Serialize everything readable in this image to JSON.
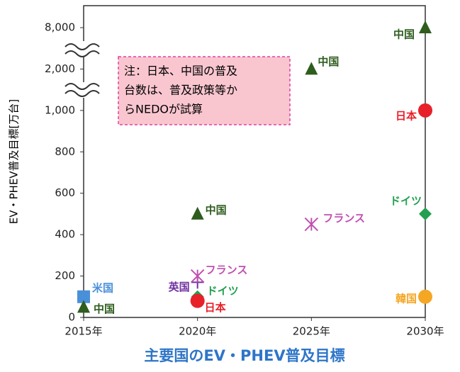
{
  "chart_data": {
    "type": "scatter",
    "title": "主要国のEV・PHEV普及目標",
    "y_label": "EV・PHEV普及目標[万台]",
    "annotation": [
      "注：日本、中国の普及",
      "台数は、普及政策等か",
      "らNEDOが試算"
    ],
    "xlim": [
      2015,
      2030
    ],
    "xticks": [
      {
        "value": 2015,
        "label": "2015年"
      },
      {
        "value": 2020,
        "label": "2020年"
      },
      {
        "value": 2025,
        "label": "2025年"
      },
      {
        "value": 2030,
        "label": "2030年"
      }
    ],
    "ylim": [
      0,
      8000
    ],
    "yticks": [
      0,
      200,
      400,
      600,
      800,
      {
        "value": 1000,
        "label": "1,000"
      },
      {
        "value": 2000,
        "label": "2,000"
      },
      {
        "value": 8000,
        "label": "8,000"
      }
    ],
    "series": [
      {
        "name": "米国",
        "color": "#4a90d9",
        "marker": "square",
        "x": [
          2015
        ],
        "values": [
          100
        ]
      },
      {
        "name": "中国",
        "color": "#2e5d1e",
        "marker": "triangle",
        "x": [
          2015,
          2020,
          2025,
          2030
        ],
        "values": [
          50,
          500,
          2000,
          8000
        ]
      },
      {
        "name": "英国",
        "color": "#7030a0",
        "marker": "plus",
        "x": [
          2020
        ],
        "values": [
          170
        ]
      },
      {
        "name": "フランス",
        "color": "#c050b0",
        "marker": "asterisk",
        "x": [
          2020,
          2025
        ],
        "values": [
          200,
          450
        ]
      },
      {
        "name": "ドイツ",
        "color": "#22a050",
        "marker": "diamond",
        "x": [
          2020,
          2030
        ],
        "values": [
          100,
          500
        ]
      },
      {
        "name": "日本",
        "color": "#e8202a",
        "marker": "circle",
        "x": [
          2020,
          2030
        ],
        "values": [
          80,
          1000
        ]
      },
      {
        "name": "韓国",
        "color": "#f5a623",
        "marker": "circle",
        "x": [
          2030
        ],
        "values": [
          100
        ]
      }
    ]
  }
}
